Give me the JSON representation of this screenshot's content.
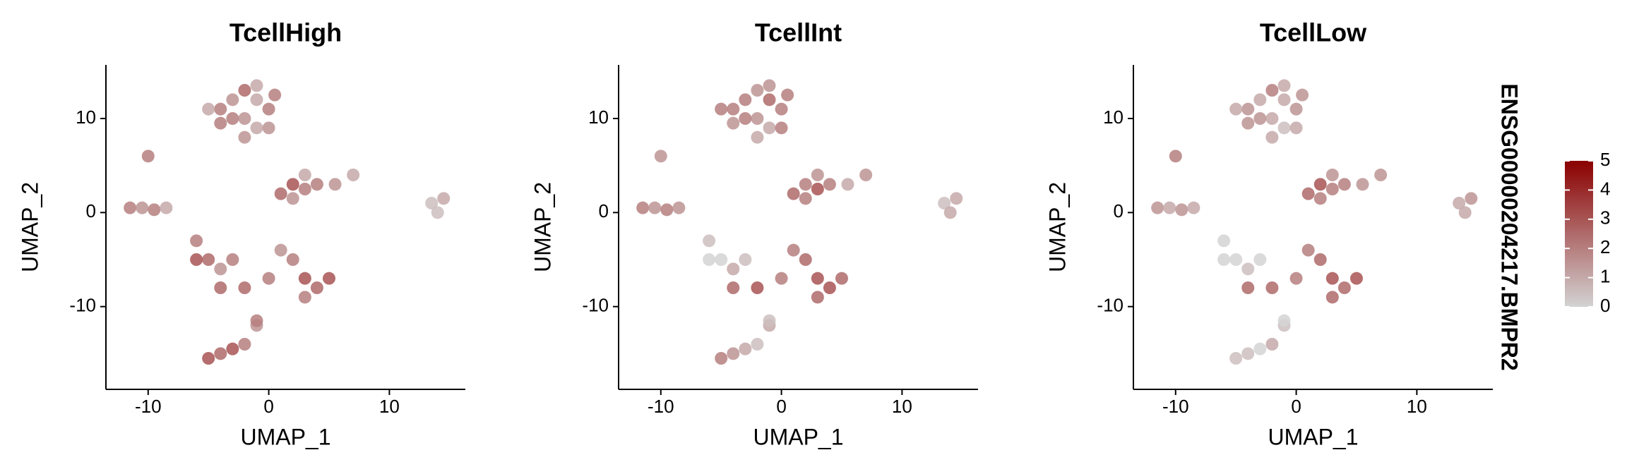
{
  "chart_data": [
    {
      "type": "scatter",
      "title": "TcellHigh",
      "x_label": "UMAP_1",
      "y_label": "UMAP_2",
      "xlim": [
        -13.5,
        16.3
      ],
      "ylim": [
        -18.8,
        15.7
      ],
      "xticks": [
        -10,
        0,
        10
      ],
      "yticks": [
        -10,
        0,
        10
      ],
      "x": [
        -4,
        -3,
        -2,
        -1,
        0,
        -2,
        -3,
        -1,
        0,
        -4,
        -5,
        -2,
        0.5,
        -1,
        -10,
        -11.5,
        -10.5,
        -9.5,
        -8.5,
        1,
        2,
        3,
        2,
        4,
        3,
        5.5,
        7,
        13.5,
        14.5,
        14,
        -6,
        -5,
        -4,
        -6,
        -3,
        2,
        3,
        4,
        5,
        3,
        0,
        -2,
        -4,
        1,
        -4,
        -3,
        -2,
        -1,
        -1,
        -5
      ],
      "y": [
        11,
        12,
        13,
        12,
        11,
        10,
        10,
        9,
        9,
        9.5,
        11,
        8,
        12.5,
        13.5,
        6,
        0.5,
        0.5,
        0.3,
        0.5,
        2,
        3,
        2.5,
        1.5,
        3,
        4,
        3,
        4,
        1,
        1.5,
        0,
        -3,
        -5,
        -6,
        -5,
        -5,
        -5,
        -7,
        -8,
        -7,
        -9,
        -7,
        -8,
        -8,
        -4,
        -15,
        -14.5,
        -14,
        -12,
        -11.5,
        -15.5
      ],
      "values": [
        2,
        1.5,
        2.5,
        1,
        2,
        1.5,
        2,
        1,
        1.5,
        2,
        1,
        1.5,
        2,
        1,
        2,
        2,
        1.5,
        2,
        1,
        2.5,
        3,
        2,
        1.5,
        2,
        1,
        1.5,
        1,
        0.5,
        1,
        0.5,
        2,
        2.5,
        1.5,
        3,
        2,
        2,
        3,
        2.5,
        3,
        2,
        2,
        2.5,
        2.5,
        1.5,
        2.5,
        3,
        2,
        1.5,
        2,
        3
      ]
    },
    {
      "type": "scatter",
      "title": "TcellInt",
      "x_label": "UMAP_1",
      "y_label": "UMAP_2",
      "xlim": [
        -13.5,
        16.3
      ],
      "ylim": [
        -18.8,
        15.7
      ],
      "xticks": [
        -10,
        0,
        10
      ],
      "yticks": [
        -10,
        0,
        10
      ],
      "x": [
        -4,
        -3,
        -2,
        -1,
        0,
        -2,
        -3,
        -1,
        0,
        -4,
        -5,
        -2,
        0.5,
        -1,
        -10,
        -11.5,
        -10.5,
        -9.5,
        -8.5,
        1,
        2,
        3,
        2,
        4,
        3,
        5.5,
        7,
        13.5,
        14.5,
        14,
        -6,
        -5,
        -4,
        -6,
        -3,
        2,
        3,
        4,
        5,
        3,
        0,
        -2,
        -4,
        1,
        -4,
        -3,
        -2,
        -1,
        -1,
        -5
      ],
      "y": [
        11,
        12,
        13,
        12,
        11,
        10,
        10,
        9,
        9,
        9.5,
        11,
        8,
        12.5,
        13.5,
        6,
        0.5,
        0.5,
        0.3,
        0.5,
        2,
        3,
        2.5,
        1.5,
        3,
        4,
        3,
        4,
        1,
        1.5,
        0,
        -3,
        -5,
        -6,
        -5,
        -5,
        -5,
        -7,
        -8,
        -7,
        -9,
        -7,
        -8,
        -8,
        -4,
        -15,
        -14.5,
        -14,
        -12,
        -11.5,
        -15.5
      ],
      "values": [
        2,
        2,
        1.5,
        2.5,
        2,
        1.5,
        2,
        1,
        2,
        1.5,
        2,
        1,
        2,
        1.5,
        1.5,
        2,
        1.5,
        2,
        1.5,
        2.5,
        2,
        3,
        2,
        2,
        1.5,
        1,
        1.5,
        0.5,
        1,
        1,
        0.5,
        0,
        1,
        0,
        0.5,
        2.5,
        3,
        3,
        2.5,
        2.5,
        2,
        3,
        2.5,
        2,
        1.5,
        1,
        0.5,
        1,
        0.5,
        2
      ]
    },
    {
      "type": "scatter",
      "title": "TcellLow",
      "x_label": "UMAP_1",
      "y_label": "UMAP_2",
      "xlim": [
        -13.5,
        16.3
      ],
      "ylim": [
        -18.8,
        15.7
      ],
      "xticks": [
        -10,
        0,
        10
      ],
      "yticks": [
        -10,
        0,
        10
      ],
      "x": [
        -4,
        -3,
        -2,
        -1,
        0,
        -2,
        -3,
        -1,
        0,
        -4,
        -5,
        -2,
        0.5,
        -1,
        -10,
        -11.5,
        -10.5,
        -9.5,
        -8.5,
        1,
        2,
        3,
        2,
        4,
        3,
        5.5,
        7,
        13.5,
        14.5,
        14,
        -6,
        -5,
        -4,
        -6,
        -3,
        2,
        3,
        4,
        5,
        3,
        0,
        -2,
        -4,
        1,
        -4,
        -3,
        -2,
        -1,
        -1,
        -5
      ],
      "y": [
        11,
        12,
        13,
        12,
        11,
        10,
        10,
        9,
        9,
        9.5,
        11,
        8,
        12.5,
        13.5,
        6,
        0.5,
        0.5,
        0.3,
        0.5,
        2,
        3,
        2.5,
        1.5,
        3,
        4,
        3,
        4,
        1,
        1.5,
        0,
        -3,
        -5,
        -6,
        -5,
        -5,
        -5,
        -7,
        -8,
        -7,
        -9,
        -7,
        -8,
        -8,
        -4,
        -15,
        -14.5,
        -14,
        -12,
        -11.5,
        -15.5
      ],
      "values": [
        1.5,
        1,
        2,
        1,
        1.5,
        1,
        1.5,
        0.5,
        1,
        1.5,
        1,
        1,
        1.5,
        1,
        2,
        1.5,
        1,
        1.5,
        1,
        2.5,
        3,
        2,
        2,
        2,
        1.5,
        1.5,
        1.5,
        1,
        1.5,
        1,
        0,
        0,
        0.5,
        0,
        0,
        2.5,
        3,
        2.5,
        3,
        2.5,
        2,
        2.5,
        2.5,
        2,
        0.5,
        0,
        1,
        0.5,
        0,
        0.5
      ]
    }
  ],
  "color_scale": {
    "title": "ENSG00000204217.BMPR2",
    "lim": [
      0,
      5
    ],
    "ticks": [
      0,
      1,
      2,
      3,
      4,
      5
    ],
    "colors": [
      "#d3d3d3",
      "#8b0000"
    ]
  }
}
